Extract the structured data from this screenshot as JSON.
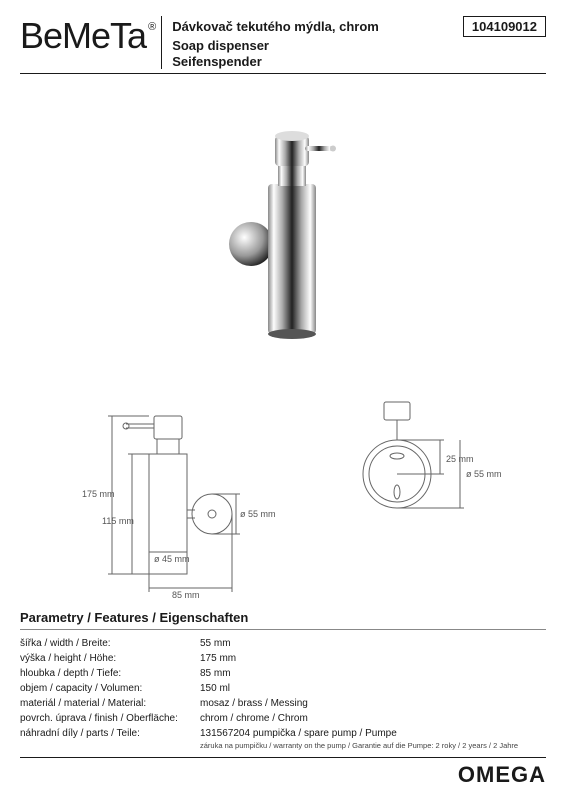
{
  "brand": "BeMeTa",
  "brand_reg": "®",
  "header": {
    "title_cz": "Dávkovač tekutého mýdla, chrom",
    "title_en": "Soap dispenser",
    "title_de": "Seifenspender",
    "code": "104109012"
  },
  "diagram": {
    "h_total": "175 mm",
    "h_body": "115 mm",
    "d_body": "ø 45 mm",
    "d_mount": "ø 55 mm",
    "depth": "85 mm",
    "top_d": "ø 55 mm",
    "top_offset": "25 mm"
  },
  "params": {
    "title": "Parametry / Features / Eigenschaften",
    "rows": [
      {
        "label": "šířka / width / Breite:",
        "value": "55 mm"
      },
      {
        "label": "výška / height / Höhe:",
        "value": "175 mm"
      },
      {
        "label": "hloubka / depth / Tiefe:",
        "value": "85 mm"
      },
      {
        "label": "objem / capacity / Volumen:",
        "value": "150 ml"
      },
      {
        "label": "materiál / material / Material:",
        "value": "mosaz / brass / Messing"
      },
      {
        "label": "povrch. úprava / finish / Oberfläche:",
        "value": "chrom / chrome / Chrom"
      },
      {
        "label": "náhradní díly / parts / Teile:",
        "value": "131567204  pumpička / spare pump / Pumpe"
      }
    ],
    "warranty": "záruka na pumpičku / warranty on the pump / Garantie auf die Pumpe: 2 roky / 2 years / 2 Jahre"
  },
  "footer": {
    "series": "OMEGA"
  },
  "colors": {
    "text": "#1a1a1a",
    "line": "#666666",
    "chrome_light": "#f8f8f8",
    "chrome_mid": "#bbbbbb",
    "chrome_dark": "#444444"
  }
}
